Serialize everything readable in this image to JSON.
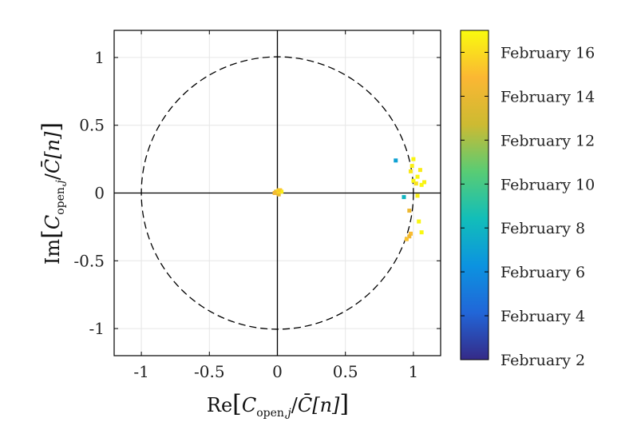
{
  "chart_data": {
    "type": "scatter",
    "title": "",
    "xlabel": "Re[C_open,j / C̄[n]]",
    "ylabel": "Im[C_open,j / C̄[n]]",
    "xlabel_parts": {
      "prefix": "Re",
      "C": "C",
      "sub": "open,",
      "j": "j",
      "slash": "/",
      "Cbar": "C̄",
      "n": "[n]"
    },
    "ylabel_parts": {
      "prefix": "Im",
      "C": "C",
      "sub": "open,",
      "j": "j",
      "slash": "/",
      "Cbar": "C̄",
      "n": "[n]"
    },
    "xlim": [
      -1.2,
      1.2
    ],
    "ylim": [
      -1.2,
      1.2
    ],
    "xticks": [
      -1,
      -0.5,
      0,
      0.5,
      1
    ],
    "xtick_labels": [
      "-1",
      "-0.5",
      "0",
      "0.5",
      "1"
    ],
    "yticks": [
      -1,
      -0.5,
      0,
      0.5,
      1
    ],
    "ytick_labels": [
      "-1",
      "-0.5",
      "0",
      "0.5",
      "1"
    ],
    "grid": true,
    "reference_circle": {
      "center": [
        0,
        0
      ],
      "radius": 1,
      "style": "dashed"
    },
    "colormap": "parula",
    "colorbar": {
      "range_days": [
        2,
        17
      ],
      "tick_days": [
        2,
        4,
        6,
        8,
        10,
        12,
        14,
        16
      ],
      "tick_labels": [
        "February 2",
        "February 4",
        "February 6",
        "February 8",
        "February 10",
        "February 12",
        "February 14",
        "February 16"
      ]
    },
    "points": [
      {
        "x": 0.0,
        "y": 0.0,
        "day": 12
      },
      {
        "x": -0.01,
        "y": 0.01,
        "day": 13
      },
      {
        "x": 0.01,
        "y": -0.01,
        "day": 14
      },
      {
        "x": 0.02,
        "y": 0.02,
        "day": 15
      },
      {
        "x": 0.0,
        "y": 0.01,
        "day": 16
      },
      {
        "x": -0.02,
        "y": 0.0,
        "day": 14.5
      },
      {
        "x": 0.03,
        "y": 0.01,
        "day": 16.5
      },
      {
        "x": 0.01,
        "y": 0.02,
        "day": 15.5
      },
      {
        "x": 0.87,
        "y": 0.24,
        "day": 7
      },
      {
        "x": 0.93,
        "y": -0.03,
        "day": 8
      },
      {
        "x": 1.0,
        "y": 0.25,
        "day": 16.8
      },
      {
        "x": 0.99,
        "y": 0.2,
        "day": 16.6
      },
      {
        "x": 0.98,
        "y": 0.16,
        "day": 16.4
      },
      {
        "x": 1.0,
        "y": 0.09,
        "day": 16.9
      },
      {
        "x": 1.03,
        "y": 0.12,
        "day": 16.8
      },
      {
        "x": 1.05,
        "y": 0.17,
        "day": 16.5
      },
      {
        "x": 1.08,
        "y": 0.08,
        "day": 16.7
      },
      {
        "x": 1.06,
        "y": 0.06,
        "day": 16.9
      },
      {
        "x": 1.02,
        "y": 0.07,
        "day": 16.2
      },
      {
        "x": 1.03,
        "y": -0.02,
        "day": 16.6
      },
      {
        "x": 0.97,
        "y": -0.13,
        "day": 14.2
      },
      {
        "x": 1.04,
        "y": -0.21,
        "day": 16.8
      },
      {
        "x": 1.06,
        "y": -0.29,
        "day": 16.9
      },
      {
        "x": 0.98,
        "y": -0.3,
        "day": 15.0
      },
      {
        "x": 0.97,
        "y": -0.32,
        "day": 14.3
      },
      {
        "x": 0.95,
        "y": -0.34,
        "day": 15.2
      }
    ]
  },
  "colors": {
    "axis": "#000000",
    "grid": "#e6e6e6",
    "colormap_stops": [
      "#352a87",
      "#2166d8",
      "#0c93e0",
      "#12beb9",
      "#59cc74",
      "#cdba32",
      "#fbb733",
      "#f9fb0e"
    ]
  }
}
